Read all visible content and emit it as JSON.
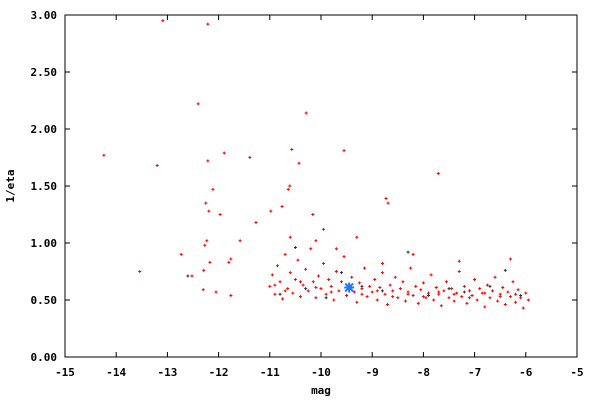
{
  "chart_data": {
    "type": "scatter",
    "title": "",
    "xlabel": "mag",
    "ylabel": "1/eta",
    "xlim": [
      -15,
      -5
    ],
    "ylim": [
      0,
      3
    ],
    "xticks": [
      "-15",
      "-14",
      "-13",
      "-12",
      "-11",
      "-10",
      "-9",
      "-8",
      "-7",
      "-6",
      "-5"
    ],
    "yticks": [
      "0.00",
      "0.50",
      "1.00",
      "1.50",
      "2.00",
      "2.50",
      "3.00"
    ],
    "grid": false,
    "legend": "none",
    "series": [
      {
        "color": "#ff0000",
        "marker": "plus",
        "points": [
          [
            -13.09,
            2.95
          ],
          [
            -12.21,
            2.92
          ],
          [
            -12.4,
            2.22
          ],
          [
            -10.29,
            2.14
          ],
          [
            -14.24,
            1.77
          ],
          [
            -13.2,
            1.68
          ],
          [
            -11.89,
            1.79
          ],
          [
            -11.39,
            1.75
          ],
          [
            -10.57,
            1.82
          ],
          [
            -9.55,
            1.81
          ],
          [
            -7.71,
            1.61
          ],
          [
            -12.21,
            1.72
          ],
          [
            -10.43,
            1.7
          ],
          [
            -12.11,
            1.47
          ],
          [
            -10.64,
            1.47
          ],
          [
            -10.61,
            1.5
          ],
          [
            -12.25,
            1.35
          ],
          [
            -11.97,
            1.25
          ],
          [
            -12.19,
            1.28
          ],
          [
            -10.76,
            1.32
          ],
          [
            -10.98,
            1.28
          ],
          [
            -11.27,
            1.18
          ],
          [
            -8.73,
            1.39
          ],
          [
            -8.69,
            1.35
          ],
          [
            -10.16,
            1.25
          ],
          [
            -13.54,
            0.75
          ],
          [
            -12.73,
            0.9
          ],
          [
            -12.23,
            1.02
          ],
          [
            -12.27,
            0.98
          ],
          [
            -11.58,
            1.02
          ],
          [
            -12.17,
            0.83
          ],
          [
            -12.29,
            0.76
          ],
          [
            -11.8,
            0.83
          ],
          [
            -11.76,
            0.86
          ],
          [
            -12.52,
            0.71
          ],
          [
            -12.3,
            0.59
          ],
          [
            -12.05,
            0.57
          ],
          [
            -11.76,
            0.54
          ],
          [
            -11.0,
            0.62
          ],
          [
            -10.95,
            0.72
          ],
          [
            -10.9,
            0.55
          ],
          [
            -10.85,
            0.8
          ],
          [
            -10.8,
            0.66
          ],
          [
            -10.75,
            0.51
          ],
          [
            -10.7,
            0.9
          ],
          [
            -10.65,
            0.6
          ],
          [
            -10.6,
            0.74
          ],
          [
            -10.55,
            0.56
          ],
          [
            -10.5,
            0.68
          ],
          [
            -10.45,
            0.85
          ],
          [
            -10.4,
            0.53
          ],
          [
            -10.35,
            0.63
          ],
          [
            -10.3,
            0.77
          ],
          [
            -10.25,
            0.58
          ],
          [
            -10.2,
            0.95
          ],
          [
            -10.15,
            0.66
          ],
          [
            -10.1,
            0.52
          ],
          [
            -10.05,
            0.71
          ],
          [
            -10.0,
            0.6
          ],
          [
            -9.95,
            0.82
          ],
          [
            -9.9,
            0.55
          ],
          [
            -9.85,
            0.68
          ],
          [
            -9.8,
            0.62
          ],
          [
            -9.75,
            0.5
          ],
          [
            -9.7,
            0.75
          ],
          [
            -9.65,
            0.58
          ],
          [
            -9.6,
            0.66
          ],
          [
            -9.55,
            0.88
          ],
          [
            -9.5,
            0.54
          ],
          [
            -9.45,
            0.63
          ],
          [
            -9.4,
            0.7
          ],
          [
            -9.35,
            0.57
          ],
          [
            -9.3,
            0.48
          ],
          [
            -9.25,
            0.65
          ],
          [
            -9.2,
            0.6
          ],
          [
            -9.15,
            0.78
          ],
          [
            -9.1,
            0.53
          ],
          [
            -9.05,
            0.62
          ],
          [
            -9.0,
            0.57
          ],
          [
            -8.95,
            0.68
          ],
          [
            -8.9,
            0.5
          ],
          [
            -8.85,
            0.61
          ],
          [
            -8.8,
            0.74
          ],
          [
            -8.75,
            0.55
          ],
          [
            -8.7,
            0.46
          ],
          [
            -8.65,
            0.63
          ],
          [
            -8.6,
            0.58
          ],
          [
            -8.55,
            0.7
          ],
          [
            -8.5,
            0.52
          ],
          [
            -8.45,
            0.6
          ],
          [
            -8.4,
            0.66
          ],
          [
            -8.35,
            0.49
          ],
          [
            -8.3,
            0.57
          ],
          [
            -8.25,
            0.78
          ],
          [
            -8.2,
            0.54
          ],
          [
            -8.15,
            0.62
          ],
          [
            -8.1,
            0.47
          ],
          [
            -8.05,
            0.59
          ],
          [
            -8.0,
            0.65
          ],
          [
            -7.95,
            0.52
          ],
          [
            -7.9,
            0.56
          ],
          [
            -7.85,
            0.72
          ],
          [
            -7.8,
            0.5
          ],
          [
            -7.75,
            0.61
          ],
          [
            -7.7,
            0.55
          ],
          [
            -7.65,
            0.45
          ],
          [
            -7.6,
            0.58
          ],
          [
            -7.55,
            0.66
          ],
          [
            -7.5,
            0.52
          ],
          [
            -7.45,
            0.6
          ],
          [
            -7.4,
            0.49
          ],
          [
            -7.35,
            0.56
          ],
          [
            -7.3,
            0.75
          ],
          [
            -7.25,
            0.53
          ],
          [
            -7.2,
            0.62
          ],
          [
            -7.15,
            0.47
          ],
          [
            -7.1,
            0.58
          ],
          [
            -7.05,
            0.54
          ],
          [
            -7.0,
            0.68
          ],
          [
            -6.95,
            0.5
          ],
          [
            -6.9,
            0.6
          ],
          [
            -6.85,
            0.56
          ],
          [
            -6.8,
            0.44
          ],
          [
            -6.75,
            0.63
          ],
          [
            -6.7,
            0.52
          ],
          [
            -6.65,
            0.58
          ],
          [
            -6.6,
            0.7
          ],
          [
            -6.55,
            0.49
          ],
          [
            -6.5,
            0.55
          ],
          [
            -6.45,
            0.61
          ],
          [
            -6.4,
            0.46
          ],
          [
            -6.35,
            0.57
          ],
          [
            -6.3,
            0.53
          ],
          [
            -6.25,
            0.66
          ],
          [
            -6.2,
            0.48
          ],
          [
            -6.15,
            0.59
          ],
          [
            -6.1,
            0.52
          ],
          [
            -6.05,
            0.43
          ],
          [
            -6.0,
            0.56
          ],
          [
            -5.95,
            0.5
          ],
          [
            -10.9,
            0.63
          ],
          [
            -10.7,
            0.58
          ],
          [
            -10.4,
            0.66
          ],
          [
            -10.1,
            0.61
          ],
          [
            -9.8,
            0.57
          ],
          [
            -9.2,
            0.55
          ],
          [
            -8.9,
            0.58
          ],
          [
            -8.6,
            0.53
          ],
          [
            -8.3,
            0.55
          ],
          [
            -8.0,
            0.53
          ],
          [
            -7.7,
            0.57
          ],
          [
            -7.4,
            0.55
          ],
          [
            -7.1,
            0.52
          ],
          [
            -6.8,
            0.56
          ],
          [
            -6.5,
            0.53
          ],
          [
            -6.2,
            0.55
          ],
          [
            -8.8,
            0.82
          ],
          [
            -8.2,
            0.9
          ],
          [
            -7.3,
            0.84
          ],
          [
            -6.3,
            0.86
          ],
          [
            -9.7,
            0.95
          ],
          [
            -10.6,
            1.05
          ],
          [
            -10.1,
            1.02
          ],
          [
            -9.95,
            1.12
          ],
          [
            -9.3,
            1.05
          ]
        ]
      },
      {
        "color": "#303030",
        "marker": "plus",
        "points": [
          [
            -12.6,
            0.71
          ],
          [
            -10.8,
            0.55
          ],
          [
            -10.3,
            0.6
          ],
          [
            -9.9,
            0.52
          ],
          [
            -9.6,
            0.74
          ],
          [
            -9.2,
            0.62
          ],
          [
            -8.8,
            0.58
          ],
          [
            -8.3,
            0.92
          ],
          [
            -7.9,
            0.54
          ],
          [
            -7.5,
            0.6
          ],
          [
            -7.2,
            0.57
          ],
          [
            -6.7,
            0.62
          ],
          [
            -6.4,
            0.76
          ],
          [
            -6.1,
            0.54
          ],
          [
            -10.5,
            0.96
          ]
        ]
      },
      {
        "color": "#1e78ff",
        "marker": "star",
        "points": [
          [
            -9.45,
            0.61
          ]
        ]
      }
    ]
  }
}
